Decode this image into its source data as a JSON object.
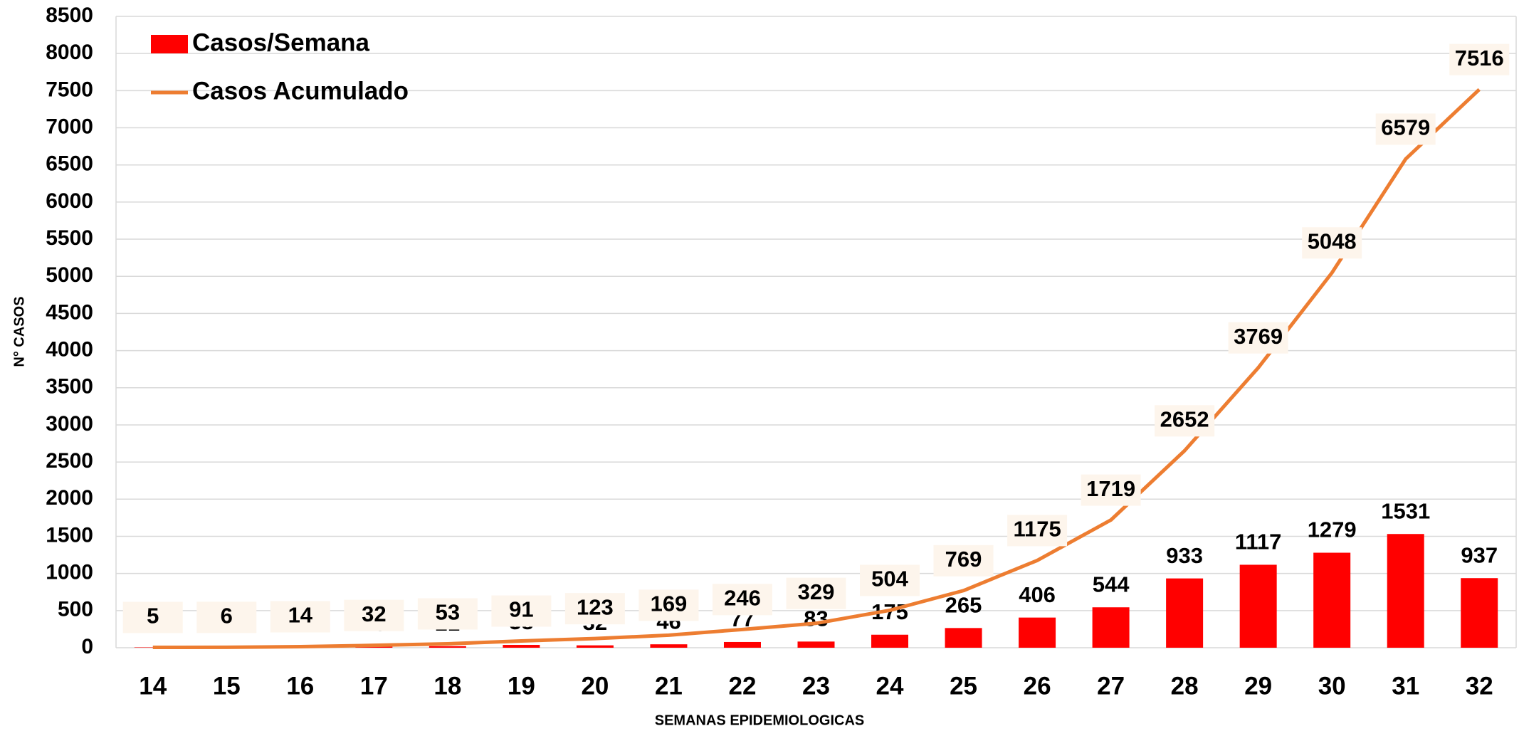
{
  "chart_data": {
    "type": "bar_line",
    "x_label": "SEMANAS EPIDEMIOLOGICAS",
    "y_label": "N° CASOS",
    "categories": [
      "14",
      "15",
      "16",
      "17",
      "18",
      "19",
      "20",
      "21",
      "22",
      "23",
      "24",
      "25",
      "26",
      "27",
      "28",
      "29",
      "30",
      "31",
      "32"
    ],
    "series": [
      {
        "name": "Casos/Semana",
        "type": "bar",
        "color": "#ff0000",
        "values": [
          5,
          1,
          8,
          18,
          21,
          38,
          32,
          46,
          77,
          83,
          175,
          265,
          406,
          544,
          933,
          1117,
          1279,
          1531,
          937
        ]
      },
      {
        "name": "Casos Acumulado",
        "type": "line",
        "color": "#ed7d31",
        "values": [
          5,
          6,
          14,
          32,
          53,
          91,
          123,
          169,
          246,
          329,
          504,
          769,
          1175,
          1719,
          2652,
          3769,
          5048,
          6579,
          7516
        ]
      }
    ],
    "ylim": [
      0,
      8500
    ],
    "yticks": [
      0,
      500,
      1000,
      1500,
      2000,
      2500,
      3000,
      3500,
      4000,
      4500,
      5000,
      5500,
      6000,
      6500,
      7000,
      7500,
      8000,
      8500
    ],
    "grid": true,
    "legend": "upper left"
  }
}
